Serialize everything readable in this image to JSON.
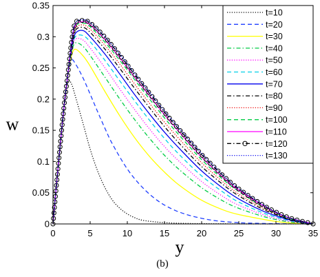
{
  "chart_data": {
    "type": "line",
    "xlabel": "y",
    "ylabel": "w",
    "caption": "(b)",
    "xlim": [
      0,
      35
    ],
    "ylim": [
      0,
      0.35
    ],
    "xticks": [
      0,
      5,
      10,
      15,
      20,
      25,
      30,
      35
    ],
    "yticks": [
      0,
      0.05,
      0.1,
      0.15,
      0.2,
      0.25,
      0.3,
      0.35
    ],
    "xtick_labels": [
      "0",
      "5",
      "10",
      "15",
      "20",
      "25",
      "30",
      "35"
    ],
    "ytick_labels": [
      "0",
      "0.05",
      "0.1",
      "0.15",
      "0.2",
      "0.25",
      "0.3",
      "0.35"
    ],
    "grid": false,
    "legend_position": "top-right",
    "series": [
      {
        "name": "t=10",
        "color": "#000000",
        "style": "dotted",
        "x": [
          0,
          0.5,
          1,
          1.5,
          2,
          2.5,
          3,
          4,
          5,
          6,
          7,
          8,
          9,
          10,
          11,
          12,
          14,
          16,
          18,
          20,
          25,
          30,
          35
        ],
        "y": [
          0,
          0.067,
          0.13,
          0.185,
          0.228,
          0.224,
          0.205,
          0.163,
          0.12,
          0.085,
          0.058,
          0.038,
          0.025,
          0.016,
          0.01,
          0.006,
          0.003,
          0.0015,
          0.0008,
          0.0004,
          0.0001,
          0,
          0
        ]
      },
      {
        "name": "t=20",
        "color": "#1f3fff",
        "style": "dashed",
        "x": [
          0,
          0.5,
          1,
          1.5,
          2,
          2.5,
          3,
          4,
          5,
          6,
          7,
          8,
          10,
          12,
          14,
          16,
          18,
          20,
          22,
          25,
          28,
          30,
          35
        ],
        "y": [
          0,
          0.067,
          0.13,
          0.19,
          0.24,
          0.262,
          0.257,
          0.235,
          0.208,
          0.18,
          0.153,
          0.128,
          0.088,
          0.059,
          0.038,
          0.024,
          0.015,
          0.009,
          0.005,
          0.002,
          0.0008,
          0.0004,
          0
        ]
      },
      {
        "name": "t=30",
        "color": "#ffff00",
        "style": "solid",
        "x": [
          0,
          0.5,
          1,
          1.5,
          2,
          2.5,
          3,
          4,
          5,
          7,
          9,
          11,
          13,
          15,
          17,
          20,
          23,
          25,
          28,
          30,
          32,
          35
        ],
        "y": [
          0,
          0.067,
          0.13,
          0.19,
          0.24,
          0.27,
          0.28,
          0.27,
          0.253,
          0.212,
          0.173,
          0.138,
          0.108,
          0.083,
          0.062,
          0.038,
          0.022,
          0.015,
          0.008,
          0.004,
          0.0015,
          0
        ]
      },
      {
        "name": "t=40",
        "color": "#00cc44",
        "style": "dashdot",
        "x": [
          0,
          0.5,
          1,
          1.5,
          2,
          2.5,
          3,
          4,
          5,
          7,
          9,
          11,
          13,
          15,
          17,
          20,
          23,
          25,
          28,
          30,
          32,
          35
        ],
        "y": [
          0,
          0.067,
          0.13,
          0.19,
          0.24,
          0.275,
          0.29,
          0.285,
          0.27,
          0.235,
          0.2,
          0.167,
          0.137,
          0.11,
          0.087,
          0.058,
          0.036,
          0.025,
          0.013,
          0.007,
          0.003,
          0
        ]
      },
      {
        "name": "t=50",
        "color": "#ff00ff",
        "style": "dotted",
        "x": [
          0,
          0.5,
          1,
          1.5,
          2,
          2.5,
          3,
          4,
          5,
          7,
          9,
          11,
          13,
          15,
          17,
          20,
          23,
          25,
          28,
          30,
          32,
          35
        ],
        "y": [
          0,
          0.067,
          0.13,
          0.19,
          0.24,
          0.278,
          0.296,
          0.295,
          0.282,
          0.25,
          0.216,
          0.183,
          0.152,
          0.124,
          0.1,
          0.068,
          0.043,
          0.03,
          0.016,
          0.009,
          0.004,
          0
        ]
      },
      {
        "name": "t=60",
        "color": "#00d0e8",
        "style": "dashed",
        "x": [
          0,
          0.5,
          1,
          1.5,
          2,
          2.5,
          3,
          4,
          5,
          7,
          9,
          11,
          13,
          15,
          17,
          20,
          23,
          25,
          28,
          30,
          32,
          35
        ],
        "y": [
          0,
          0.067,
          0.13,
          0.19,
          0.24,
          0.28,
          0.3,
          0.302,
          0.292,
          0.262,
          0.229,
          0.197,
          0.166,
          0.137,
          0.111,
          0.077,
          0.05,
          0.035,
          0.019,
          0.011,
          0.005,
          0
        ]
      },
      {
        "name": "t=70",
        "color": "#0000ee",
        "style": "solid",
        "x": [
          0,
          0.5,
          1,
          1.5,
          2,
          2.5,
          3,
          4,
          5,
          7,
          9,
          11,
          13,
          15,
          17,
          20,
          23,
          25,
          28,
          30,
          32,
          35
        ],
        "y": [
          0,
          0.067,
          0.13,
          0.19,
          0.24,
          0.282,
          0.305,
          0.31,
          0.3,
          0.272,
          0.24,
          0.207,
          0.176,
          0.147,
          0.121,
          0.085,
          0.056,
          0.04,
          0.022,
          0.013,
          0.006,
          0
        ]
      },
      {
        "name": "t=80",
        "color": "#000000",
        "style": "dashdot",
        "x": [
          0,
          0.5,
          1,
          1.5,
          2,
          2.5,
          3,
          4,
          5,
          7,
          9,
          11,
          13,
          15,
          17,
          20,
          23,
          25,
          28,
          30,
          32,
          35
        ],
        "y": [
          0,
          0.067,
          0.13,
          0.19,
          0.24,
          0.285,
          0.31,
          0.315,
          0.307,
          0.28,
          0.249,
          0.217,
          0.186,
          0.156,
          0.129,
          0.092,
          0.062,
          0.045,
          0.025,
          0.015,
          0.007,
          0
        ]
      },
      {
        "name": "t=90",
        "color": "#ee0000",
        "style": "dotted",
        "x": [
          0,
          0.5,
          1,
          1.5,
          2,
          2.5,
          3,
          4,
          5,
          7,
          9,
          11,
          13,
          15,
          17,
          20,
          23,
          25,
          28,
          30,
          32,
          35
        ],
        "y": [
          0,
          0.067,
          0.13,
          0.19,
          0.24,
          0.287,
          0.313,
          0.319,
          0.312,
          0.286,
          0.256,
          0.224,
          0.193,
          0.163,
          0.136,
          0.098,
          0.066,
          0.048,
          0.027,
          0.016,
          0.008,
          0
        ]
      },
      {
        "name": "t=100",
        "color": "#00cc44",
        "style": "dashed",
        "x": [
          0,
          0.5,
          1,
          1.5,
          2,
          2.5,
          3,
          4,
          5,
          7,
          9,
          11,
          13,
          15,
          17,
          20,
          23,
          25,
          28,
          30,
          32,
          35
        ],
        "y": [
          0,
          0.067,
          0.13,
          0.19,
          0.24,
          0.288,
          0.316,
          0.322,
          0.316,
          0.291,
          0.262,
          0.231,
          0.2,
          0.17,
          0.142,
          0.103,
          0.07,
          0.052,
          0.029,
          0.017,
          0.008,
          0
        ]
      },
      {
        "name": "t=110",
        "color": "#ff00ff",
        "style": "solid",
        "x": [
          0,
          0.5,
          1,
          1.5,
          2,
          2.5,
          3,
          4,
          5,
          7,
          9,
          11,
          13,
          15,
          17,
          20,
          23,
          25,
          28,
          30,
          32,
          35
        ],
        "y": [
          0,
          0.067,
          0.13,
          0.19,
          0.24,
          0.29,
          0.318,
          0.324,
          0.319,
          0.295,
          0.266,
          0.235,
          0.205,
          0.175,
          0.147,
          0.107,
          0.073,
          0.054,
          0.031,
          0.018,
          0.009,
          0
        ]
      },
      {
        "name": "t=120",
        "color": "#000000",
        "style": "dashdot-circle",
        "x": [
          0,
          0.5,
          1,
          1.5,
          2,
          2.5,
          3,
          4,
          5,
          7,
          9,
          11,
          13,
          15,
          17,
          20,
          23,
          25,
          28,
          30,
          32,
          35
        ],
        "y": [
          0,
          0.067,
          0.13,
          0.19,
          0.24,
          0.292,
          0.322,
          0.326,
          0.322,
          0.299,
          0.27,
          0.239,
          0.209,
          0.179,
          0.151,
          0.111,
          0.076,
          0.056,
          0.032,
          0.019,
          0.009,
          0
        ]
      },
      {
        "name": "t=130",
        "color": "#0000ee",
        "style": "dotted",
        "x": [
          0,
          0.5,
          1,
          1.5,
          2,
          2.5,
          3,
          4,
          5,
          7,
          9,
          11,
          13,
          15,
          17,
          20,
          23,
          25,
          28,
          30,
          32,
          35
        ],
        "y": [
          0,
          0.067,
          0.13,
          0.19,
          0.24,
          0.292,
          0.322,
          0.327,
          0.323,
          0.3,
          0.272,
          0.241,
          0.211,
          0.181,
          0.153,
          0.113,
          0.077,
          0.057,
          0.033,
          0.019,
          0.009,
          0
        ]
      }
    ]
  }
}
